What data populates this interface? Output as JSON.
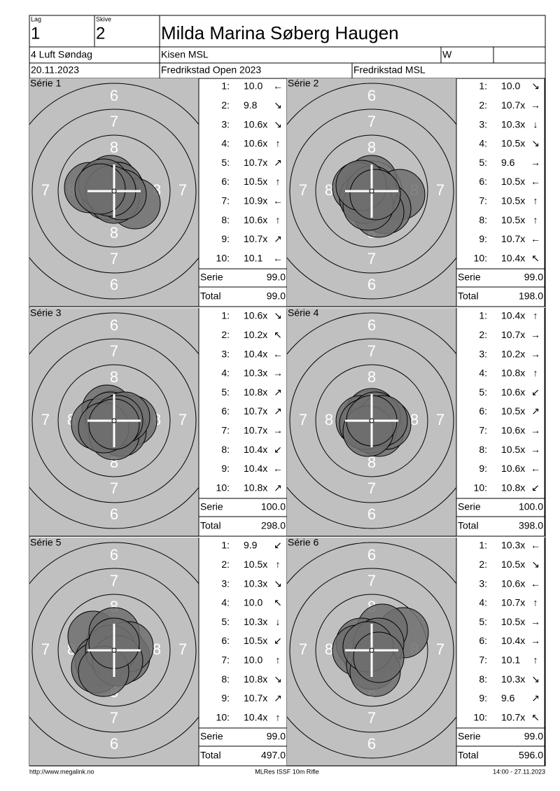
{
  "header": {
    "lag_label": "Lag",
    "lag": "1",
    "skive_label": "Skive",
    "skive": "2",
    "name": "Milda Marina Søberg Haugen",
    "class": "4 Luft Søndag",
    "club": "Kisen MSL",
    "w": "W",
    "date": "20.11.2023",
    "event": "Fredrikstad Open 2023",
    "host": "Fredrikstad MSL"
  },
  "target_labels": [
    "6",
    "7",
    "8"
  ],
  "series": [
    {
      "title": "Série 1",
      "shots": [
        {
          "n": "1:",
          "score": "10.0",
          "dir": "←"
        },
        {
          "n": "2:",
          "score": "9.8",
          "dir": "↘"
        },
        {
          "n": "3:",
          "score": "10.6x",
          "dir": "↘"
        },
        {
          "n": "4:",
          "score": "10.6x",
          "dir": "↑"
        },
        {
          "n": "5:",
          "score": "10.7x",
          "dir": "↗"
        },
        {
          "n": "6:",
          "score": "10.5x",
          "dir": "↑"
        },
        {
          "n": "7:",
          "score": "10.9x",
          "dir": "←"
        },
        {
          "n": "8:",
          "score": "10.6x",
          "dir": "↑"
        },
        {
          "n": "9:",
          "score": "10.7x",
          "dir": "↗"
        },
        {
          "n": "10:",
          "score": "10.1",
          "dir": "←"
        }
      ],
      "serie_label": "Serie",
      "serie": "99.0",
      "total_label": "Total",
      "total": "99.0"
    },
    {
      "title": "Série 2",
      "shots": [
        {
          "n": "1:",
          "score": "10.0",
          "dir": "↘"
        },
        {
          "n": "2:",
          "score": "10.7x",
          "dir": "→"
        },
        {
          "n": "3:",
          "score": "10.3x",
          "dir": "↓"
        },
        {
          "n": "4:",
          "score": "10.5x",
          "dir": "↘"
        },
        {
          "n": "5:",
          "score": "9.6",
          "dir": "→"
        },
        {
          "n": "6:",
          "score": "10.5x",
          "dir": "←"
        },
        {
          "n": "7:",
          "score": "10.5x",
          "dir": "↑"
        },
        {
          "n": "8:",
          "score": "10.5x",
          "dir": "↑"
        },
        {
          "n": "9:",
          "score": "10.7x",
          "dir": "←"
        },
        {
          "n": "10:",
          "score": "10.4x",
          "dir": "↖"
        }
      ],
      "serie_label": "Serie",
      "serie": "99.0",
      "total_label": "Total",
      "total": "198.0"
    },
    {
      "title": "Série 3",
      "shots": [
        {
          "n": "1:",
          "score": "10.6x",
          "dir": "↘"
        },
        {
          "n": "2:",
          "score": "10.2x",
          "dir": "↖"
        },
        {
          "n": "3:",
          "score": "10.4x",
          "dir": "←"
        },
        {
          "n": "4:",
          "score": "10.3x",
          "dir": "→"
        },
        {
          "n": "5:",
          "score": "10.8x",
          "dir": "↗"
        },
        {
          "n": "6:",
          "score": "10.7x",
          "dir": "↗"
        },
        {
          "n": "7:",
          "score": "10.7x",
          "dir": "→"
        },
        {
          "n": "8:",
          "score": "10.4x",
          "dir": "↙"
        },
        {
          "n": "9:",
          "score": "10.4x",
          "dir": "←"
        },
        {
          "n": "10:",
          "score": "10.8x",
          "dir": "↗"
        }
      ],
      "serie_label": "Serie",
      "serie": "100.0",
      "total_label": "Total",
      "total": "298.0"
    },
    {
      "title": "Série 4",
      "shots": [
        {
          "n": "1:",
          "score": "10.4x",
          "dir": "↑"
        },
        {
          "n": "2:",
          "score": "10.7x",
          "dir": "→"
        },
        {
          "n": "3:",
          "score": "10.2x",
          "dir": "→"
        },
        {
          "n": "4:",
          "score": "10.8x",
          "dir": "↑"
        },
        {
          "n": "5:",
          "score": "10.6x",
          "dir": "↙"
        },
        {
          "n": "6:",
          "score": "10.5x",
          "dir": "↗"
        },
        {
          "n": "7:",
          "score": "10.6x",
          "dir": "→"
        },
        {
          "n": "8:",
          "score": "10.5x",
          "dir": "→"
        },
        {
          "n": "9:",
          "score": "10.6x",
          "dir": "←"
        },
        {
          "n": "10:",
          "score": "10.8x",
          "dir": "↙"
        }
      ],
      "serie_label": "Serie",
      "serie": "100.0",
      "total_label": "Total",
      "total": "398.0"
    },
    {
      "title": "Série 5",
      "shots": [
        {
          "n": "1:",
          "score": "9.9",
          "dir": "↙"
        },
        {
          "n": "2:",
          "score": "10.5x",
          "dir": "↑"
        },
        {
          "n": "3:",
          "score": "10.3x",
          "dir": "↘"
        },
        {
          "n": "4:",
          "score": "10.0",
          "dir": "↖"
        },
        {
          "n": "5:",
          "score": "10.3x",
          "dir": "↓"
        },
        {
          "n": "6:",
          "score": "10.5x",
          "dir": "↙"
        },
        {
          "n": "7:",
          "score": "10.0",
          "dir": "↑"
        },
        {
          "n": "8:",
          "score": "10.8x",
          "dir": "↘"
        },
        {
          "n": "9:",
          "score": "10.7x",
          "dir": "↗"
        },
        {
          "n": "10:",
          "score": "10.4x",
          "dir": "↑"
        }
      ],
      "serie_label": "Serie",
      "serie": "99.0",
      "total_label": "Total",
      "total": "497.0"
    },
    {
      "title": "Série 6",
      "shots": [
        {
          "n": "1:",
          "score": "10.3x",
          "dir": "←"
        },
        {
          "n": "2:",
          "score": "10.5x",
          "dir": "↘"
        },
        {
          "n": "3:",
          "score": "10.6x",
          "dir": "←"
        },
        {
          "n": "4:",
          "score": "10.7x",
          "dir": "↑"
        },
        {
          "n": "5:",
          "score": "10.5x",
          "dir": "→"
        },
        {
          "n": "6:",
          "score": "10.4x",
          "dir": "→"
        },
        {
          "n": "7:",
          "score": "10.1",
          "dir": "↑"
        },
        {
          "n": "8:",
          "score": "10.3x",
          "dir": "↘"
        },
        {
          "n": "9:",
          "score": "9.6",
          "dir": "↗"
        },
        {
          "n": "10:",
          "score": "10.7x",
          "dir": "↖"
        }
      ],
      "serie_label": "Serie",
      "serie": "99.0",
      "total_label": "Total",
      "total": "596.0"
    }
  ],
  "footer": {
    "url": "http://www.megalink.no",
    "program": "MLRes ISSF 10m Rifle",
    "time": "14:00 - 27.11.2023"
  }
}
